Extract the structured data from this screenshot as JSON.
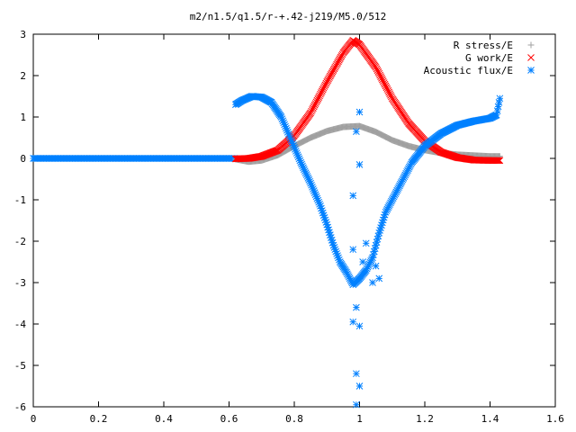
{
  "chart_data": {
    "type": "scatter",
    "title": "m2/n1.5/q1.5/r-+.42-j219/M5.0/512",
    "xlabel": "",
    "ylabel": "",
    "xlim": [
      0,
      1.6
    ],
    "ylim": [
      -6,
      3
    ],
    "x_ticks": [
      "0",
      "0.2",
      "0.4",
      "0.6",
      "0.8",
      "1",
      "1.2",
      "1.4",
      "1.6"
    ],
    "y_ticks": [
      "3",
      "2",
      "1",
      "0",
      "-1",
      "-2",
      "-3",
      "-4",
      "-5",
      "-6"
    ],
    "grid": false,
    "legend_position": "top-right",
    "series": [
      {
        "name": "R stress/E",
        "marker": "+",
        "color": "#a0a0a0",
        "points": [
          [
            0.62,
            -0.02
          ],
          [
            0.66,
            -0.08
          ],
          [
            0.7,
            -0.05
          ],
          [
            0.75,
            0.08
          ],
          [
            0.8,
            0.3
          ],
          [
            0.85,
            0.5
          ],
          [
            0.9,
            0.66
          ],
          [
            0.95,
            0.76
          ],
          [
            1.0,
            0.78
          ],
          [
            1.05,
            0.64
          ],
          [
            1.1,
            0.44
          ],
          [
            1.15,
            0.3
          ],
          [
            1.2,
            0.2
          ],
          [
            1.25,
            0.13
          ],
          [
            1.3,
            0.09
          ],
          [
            1.35,
            0.07
          ],
          [
            1.4,
            0.05
          ],
          [
            1.43,
            0.05
          ]
        ]
      },
      {
        "name": "G work/E",
        "marker": "x",
        "color": "#ff0000",
        "points": [
          [
            0.62,
            -0.01
          ],
          [
            0.66,
            0.0
          ],
          [
            0.7,
            0.05
          ],
          [
            0.75,
            0.2
          ],
          [
            0.8,
            0.55
          ],
          [
            0.85,
            1.1
          ],
          [
            0.9,
            1.85
          ],
          [
            0.95,
            2.55
          ],
          [
            0.98,
            2.85
          ],
          [
            1.0,
            2.75
          ],
          [
            1.05,
            2.2
          ],
          [
            1.1,
            1.45
          ],
          [
            1.15,
            0.85
          ],
          [
            1.2,
            0.42
          ],
          [
            1.25,
            0.15
          ],
          [
            1.3,
            0.02
          ],
          [
            1.35,
            -0.04
          ],
          [
            1.4,
            -0.05
          ],
          [
            1.43,
            -0.05
          ]
        ]
      },
      {
        "name": "Acoustic flux/E",
        "marker": "*",
        "color": "#0080ff",
        "points": [
          [
            0.62,
            1.3
          ],
          [
            0.64,
            1.4
          ],
          [
            0.67,
            1.5
          ],
          [
            0.7,
            1.48
          ],
          [
            0.73,
            1.35
          ],
          [
            0.76,
            1.0
          ],
          [
            0.79,
            0.45
          ],
          [
            0.82,
            -0.1
          ],
          [
            0.85,
            -0.6
          ],
          [
            0.88,
            -1.15
          ],
          [
            0.9,
            -1.6
          ],
          [
            0.92,
            -2.1
          ],
          [
            0.94,
            -2.5
          ],
          [
            0.96,
            -2.75
          ],
          [
            0.97,
            -2.9
          ],
          [
            0.98,
            -3.05
          ],
          [
            1.0,
            -2.9
          ],
          [
            1.02,
            -2.7
          ],
          [
            1.04,
            -2.4
          ],
          [
            1.06,
            -1.8
          ],
          [
            1.08,
            -1.3
          ],
          [
            1.1,
            -1.0
          ],
          [
            1.13,
            -0.55
          ],
          [
            1.16,
            -0.1
          ],
          [
            1.2,
            0.3
          ],
          [
            1.25,
            0.6
          ],
          [
            1.3,
            0.8
          ],
          [
            1.35,
            0.9
          ],
          [
            1.4,
            0.97
          ],
          [
            1.42,
            1.05
          ],
          [
            1.43,
            1.45
          ],
          [
            0.98,
            -0.9
          ],
          [
            0.99,
            0.65
          ],
          [
            1.0,
            1.12
          ],
          [
            1.0,
            -0.15
          ],
          [
            0.98,
            -2.2
          ],
          [
            0.99,
            -3.6
          ],
          [
            0.98,
            -3.95
          ],
          [
            1.0,
            -4.05
          ],
          [
            0.99,
            -5.2
          ],
          [
            1.0,
            -5.5
          ],
          [
            0.99,
            -5.95
          ],
          [
            1.01,
            -2.5
          ],
          [
            1.02,
            -2.05
          ],
          [
            1.04,
            -3.0
          ],
          [
            1.05,
            -2.6
          ],
          [
            1.06,
            -2.9
          ]
        ]
      }
    ]
  }
}
